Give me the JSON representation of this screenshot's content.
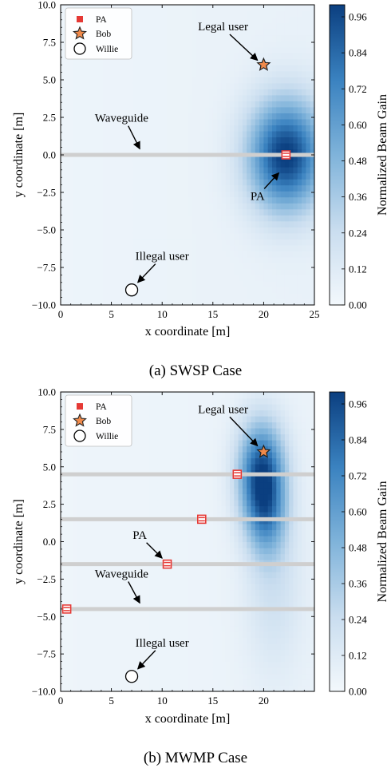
{
  "chart_data": [
    {
      "type": "heatmap",
      "caption": "(a) SWSP Case",
      "xlabel": "x coordinate [m]",
      "ylabel": "y coordinate [m]",
      "xlim": [
        0,
        25
      ],
      "ylim": [
        -10,
        10
      ],
      "x_ticks": [
        0,
        5,
        10,
        15,
        20,
        25
      ],
      "y_ticks": [
        -10.0,
        -7.5,
        -5.0,
        -2.5,
        0.0,
        2.5,
        5.0,
        7.5,
        10.0
      ],
      "colorbar_label": "Normalized Beam Gain",
      "colorbar_range": [
        0.0,
        0.96
      ],
      "colorbar_ticks": [
        0.0,
        0.12,
        0.24,
        0.36,
        0.48,
        0.6,
        0.72,
        0.84,
        0.96
      ],
      "legend": [
        "PA",
        "Bob",
        "Willie"
      ],
      "legend_position": "top-left",
      "waveguides_y": [
        0
      ],
      "pas": [
        {
          "x": 22.2,
          "y": 0
        }
      ],
      "bob": {
        "x": 20,
        "y": 6
      },
      "willie": {
        "x": 7,
        "y": -9
      },
      "gain_peaks": [
        {
          "x": 22.2,
          "y": 0,
          "sx": 2.6,
          "sy": 2.6,
          "a": 0.92
        }
      ],
      "gain_background": 0.06,
      "annotations": [
        {
          "text": "Legal user",
          "text_x": 16,
          "text_y": 8.3,
          "arrow_to": [
            19.4,
            6.3
          ]
        },
        {
          "text": "Waveguide",
          "text_x": 6,
          "text_y": 2.2,
          "arrow_to": [
            7.8,
            0.4
          ]
        },
        {
          "text": "PA",
          "text_x": 19.4,
          "text_y": -3.0,
          "arrow_to": [
            21.5,
            -1.2
          ]
        },
        {
          "text": "Illegal user",
          "text_x": 10,
          "text_y": -7.0,
          "arrow_to": [
            7.6,
            -8.5
          ]
        }
      ]
    },
    {
      "type": "heatmap",
      "caption": "(b) MWMP Case",
      "xlabel": "x coordinate [m]",
      "ylabel": "y coordinate [m]",
      "xlim": [
        0,
        25
      ],
      "ylim": [
        -10,
        10
      ],
      "x_ticks": [
        0,
        5,
        10,
        15,
        20
      ],
      "y_ticks": [
        -10.0,
        -7.5,
        -5.0,
        -2.5,
        0.0,
        2.5,
        5.0,
        7.5,
        10.0
      ],
      "colorbar_label": "Normalized Beam Gain",
      "colorbar_range": [
        0.0,
        0.96
      ],
      "colorbar_ticks": [
        0.0,
        0.12,
        0.24,
        0.36,
        0.48,
        0.6,
        0.72,
        0.84,
        0.96
      ],
      "legend": [
        "PA",
        "Bob",
        "Willie"
      ],
      "legend_position": "top-left",
      "waveguides_y": [
        4.5,
        1.5,
        -1.5,
        -4.5
      ],
      "pas": [
        {
          "x": 17.4,
          "y": 4.5
        },
        {
          "x": 13.9,
          "y": 1.5
        },
        {
          "x": 10.5,
          "y": -1.5
        },
        {
          "x": 0.6,
          "y": -4.5
        }
      ],
      "bob": {
        "x": 20,
        "y": 6
      },
      "willie": {
        "x": 7,
        "y": -9
      },
      "gain_peaks": [
        {
          "x": 19.8,
          "y": 4.6,
          "sx": 1.6,
          "sy": 2.4,
          "a": 0.85
        },
        {
          "x": 20.3,
          "y": 1.5,
          "sx": 1.4,
          "sy": 2.0,
          "a": 0.35
        },
        {
          "x": 21.0,
          "y": -3.0,
          "sx": 2.0,
          "sy": 4.0,
          "a": 0.16
        }
      ],
      "gain_background": 0.05,
      "annotations": [
        {
          "text": "Legal user",
          "text_x": 16,
          "text_y": 8.6,
          "arrow_to": [
            19.4,
            6.4
          ]
        },
        {
          "text": "PA",
          "text_x": 7.8,
          "text_y": 0.2,
          "arrow_to": [
            10.0,
            -1.1
          ]
        },
        {
          "text": "Waveguide",
          "text_x": 6,
          "text_y": -2.4,
          "arrow_to": [
            7.8,
            -4.1
          ]
        },
        {
          "text": "Illegal user",
          "text_x": 10,
          "text_y": -7.0,
          "arrow_to": [
            7.6,
            -8.5
          ]
        }
      ]
    }
  ]
}
